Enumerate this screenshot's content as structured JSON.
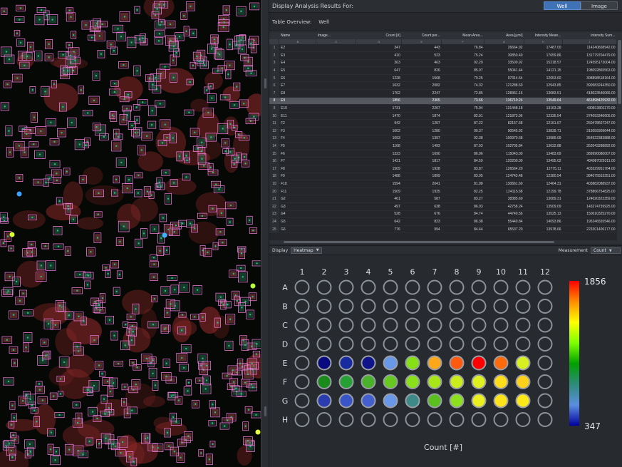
{
  "results_header": {
    "title": "Display Analysis Results For:",
    "toggle": [
      {
        "label": "Well",
        "active": true
      },
      {
        "label": "Image",
        "active": false
      }
    ]
  },
  "table_overview": {
    "label": "Table Overview:",
    "value": "Well"
  },
  "table": {
    "columns": [
      "Name",
      "Image...",
      "Count [#]",
      "Count per...",
      "Mean Area...",
      "Area [µm²]",
      "Intensity Mean...",
      "Intensity Sum..."
    ],
    "column_letters": [
      "B",
      "C",
      "D",
      "E",
      "F",
      "G",
      "H",
      "I"
    ],
    "selected_row": 8,
    "rows": [
      {
        "n": "1",
        "name": "E2",
        "count": "347",
        "count_per": "443",
        "mean_area": "76.84",
        "area": "26664.92",
        "int_mean": "17487.00",
        "int_sum": "114240608942.00"
      },
      {
        "n": "2",
        "name": "E3",
        "count": "410",
        "count_per": "523",
        "mean_area": "75.24",
        "area": "30850.40",
        "int_mean": "17659.86",
        "int_sum": "131779704479.00"
      },
      {
        "n": "3",
        "name": "E4",
        "count": "363",
        "count_per": "463",
        "mean_area": "92.29",
        "area": "33500.92",
        "int_mean": "15218.57",
        "int_sum": "124595173004.00"
      },
      {
        "n": "4",
        "name": "E5",
        "count": "647",
        "count_per": "826",
        "mean_area": "85.07",
        "area": "55041.44",
        "int_mean": "14121.15",
        "int_sum": "198092865563.00"
      },
      {
        "n": "5",
        "name": "E6",
        "count": "1228",
        "count_per": "1568",
        "mean_area": "79.25",
        "area": "97314.64",
        "int_mean": "12653.60",
        "int_sum": "308898518164.00"
      },
      {
        "n": "6",
        "name": "E7",
        "count": "1632",
        "count_per": "2082",
        "mean_area": "74.32",
        "area": "121288.60",
        "int_mean": "12943.85",
        "int_sum": "390583244350.00"
      },
      {
        "n": "7",
        "name": "E8",
        "count": "1762",
        "count_per": "2247",
        "mean_area": "72.85",
        "area": "128361.16",
        "int_mean": "13083.51",
        "int_sum": "418023546066.00"
      },
      {
        "n": "8",
        "name": "E9",
        "count": "1856",
        "count_per": "2365",
        "mean_area": "73.66",
        "area": "136710.24",
        "int_mean": "13549.64",
        "int_sum": "461898425932.00"
      },
      {
        "n": "9",
        "name": "E10",
        "count": "1731",
        "count_per": "2207",
        "mean_area": "75.94",
        "area": "131448.18",
        "int_mean": "13163.28",
        "int_sum": "430813801170.00"
      },
      {
        "n": "10",
        "name": "E11",
        "count": "1470",
        "count_per": "1874",
        "mean_area": "82.91",
        "area": "121873.96",
        "int_mean": "12335.54",
        "int_sum": "374093346605.00"
      },
      {
        "n": "11",
        "name": "F2",
        "count": "942",
        "count_per": "1207",
        "mean_area": "87.22",
        "area": "82157.68",
        "int_mean": "12161.67",
        "int_sum": "250478607247.00"
      },
      {
        "n": "12",
        "name": "F3",
        "count": "1002",
        "count_per": "1280",
        "mean_area": "90.37",
        "area": "90545.92",
        "int_mean": "13839.71",
        "int_sum": "315059309644.00"
      },
      {
        "n": "13",
        "name": "F4",
        "count": "1093",
        "count_per": "1397",
        "mean_area": "92.38",
        "area": "100970.68",
        "int_mean": "13989.09",
        "int_sum": "354522383888.00"
      },
      {
        "n": "14",
        "name": "F5",
        "count": "1168",
        "count_per": "1493",
        "mean_area": "87.93",
        "area": "102705.84",
        "int_mean": "13632.88",
        "int_sum": "352043288892.00"
      },
      {
        "n": "15",
        "name": "F6",
        "count": "1323",
        "count_per": "1690",
        "mean_area": "86.96",
        "area": "115043.00",
        "int_mean": "13483.69",
        "int_sum": "389990080007.00"
      },
      {
        "n": "16",
        "name": "F7",
        "count": "1421",
        "count_per": "1817",
        "mean_area": "84.59",
        "area": "120200.00",
        "int_mean": "13495.02",
        "int_sum": "404987029311.00"
      },
      {
        "n": "17",
        "name": "F8",
        "count": "1509",
        "count_per": "1928",
        "mean_area": "83.87",
        "area": "126564.20",
        "int_mean": "12775.11",
        "int_sum": "403329951764.00"
      },
      {
        "n": "18",
        "name": "F9",
        "count": "1488",
        "count_per": "1899",
        "mean_area": "83.95",
        "area": "124743.48",
        "int_mean": "12380.54",
        "int_sum": "384075553351.00"
      },
      {
        "n": "19",
        "name": "F10",
        "count": "1594",
        "count_per": "2041",
        "mean_area": "81.98",
        "area": "130661.60",
        "int_mean": "12464.31",
        "int_sum": "403882088937.00"
      },
      {
        "n": "20",
        "name": "F11",
        "count": "1509",
        "count_per": "1925",
        "mean_area": "82.25",
        "area": "124115.68",
        "int_mean": "12199.78",
        "int_sum": "378866754825.00"
      },
      {
        "n": "21",
        "name": "G2",
        "count": "461",
        "count_per": "587",
        "mean_area": "83.27",
        "area": "38385.60",
        "int_mean": "13089.31",
        "int_sum": "124020322359.00"
      },
      {
        "n": "22",
        "name": "G3",
        "count": "497",
        "count_per": "638",
        "mean_area": "86.03",
        "area": "42758.24",
        "int_mean": "13509.09",
        "int_sum": "143274739925.00"
      },
      {
        "n": "23",
        "name": "G4",
        "count": "528",
        "count_per": "676",
        "mean_area": "84.74",
        "area": "44740.56",
        "int_mean": "13525.13",
        "int_sum": "150010325270.00"
      },
      {
        "n": "24",
        "name": "G5",
        "count": "642",
        "count_per": "823",
        "mean_area": "86.38",
        "area": "55440.84",
        "int_mean": "14093.86",
        "int_sum": "195246555546.00"
      },
      {
        "n": "25",
        "name": "G6",
        "count": "776",
        "count_per": "994",
        "mean_area": "84.44",
        "area": "65537.20",
        "int_mean": "13978.66",
        "int_sum": "223301406177.00"
      }
    ]
  },
  "display_bar": {
    "display_label": "Display",
    "display_value": "Heatmap",
    "measurement_label": "Measurement",
    "measurement_value": "Count"
  },
  "heatmap": {
    "columns": [
      "1",
      "2",
      "3",
      "4",
      "5",
      "6",
      "7",
      "8",
      "9",
      "10",
      "11",
      "12"
    ],
    "rows": [
      "A",
      "B",
      "C",
      "D",
      "E",
      "F",
      "G",
      "H"
    ],
    "measure_label": "Count [#]",
    "scale_max": "1856",
    "scale_min": "347",
    "gradient_colors": [
      "#ff0000",
      "#ff8c00",
      "#ffff00",
      "#7fff00",
      "#00a000",
      "#2e8b7a",
      "#5b8fe0",
      "#0000a0"
    ],
    "well_colors": {
      "E": [
        "",
        "#0a0a80",
        "#182aa0",
        "#0f148a",
        "#6a98e8",
        "#86e016",
        "#ffa71a",
        "#ff5a10",
        "#ff0000",
        "#ff6a0a",
        "#d6f022",
        ""
      ],
      "F": [
        "",
        "#1a8a1a",
        "#26a032",
        "#4ab22a",
        "#66c820",
        "#8ae01a",
        "#a8e61a",
        "#ccec1c",
        "#dff020",
        "#ffdd1a",
        "#ffd11a",
        ""
      ],
      "G": [
        "",
        "#2b3cb0",
        "#3a55c8",
        "#4460cf",
        "#6a98e8",
        "#3d8a88",
        "#5bbf20",
        "#8de01e",
        "#eaf020",
        "#ffe41a",
        "#ffe818",
        ""
      ]
    }
  }
}
